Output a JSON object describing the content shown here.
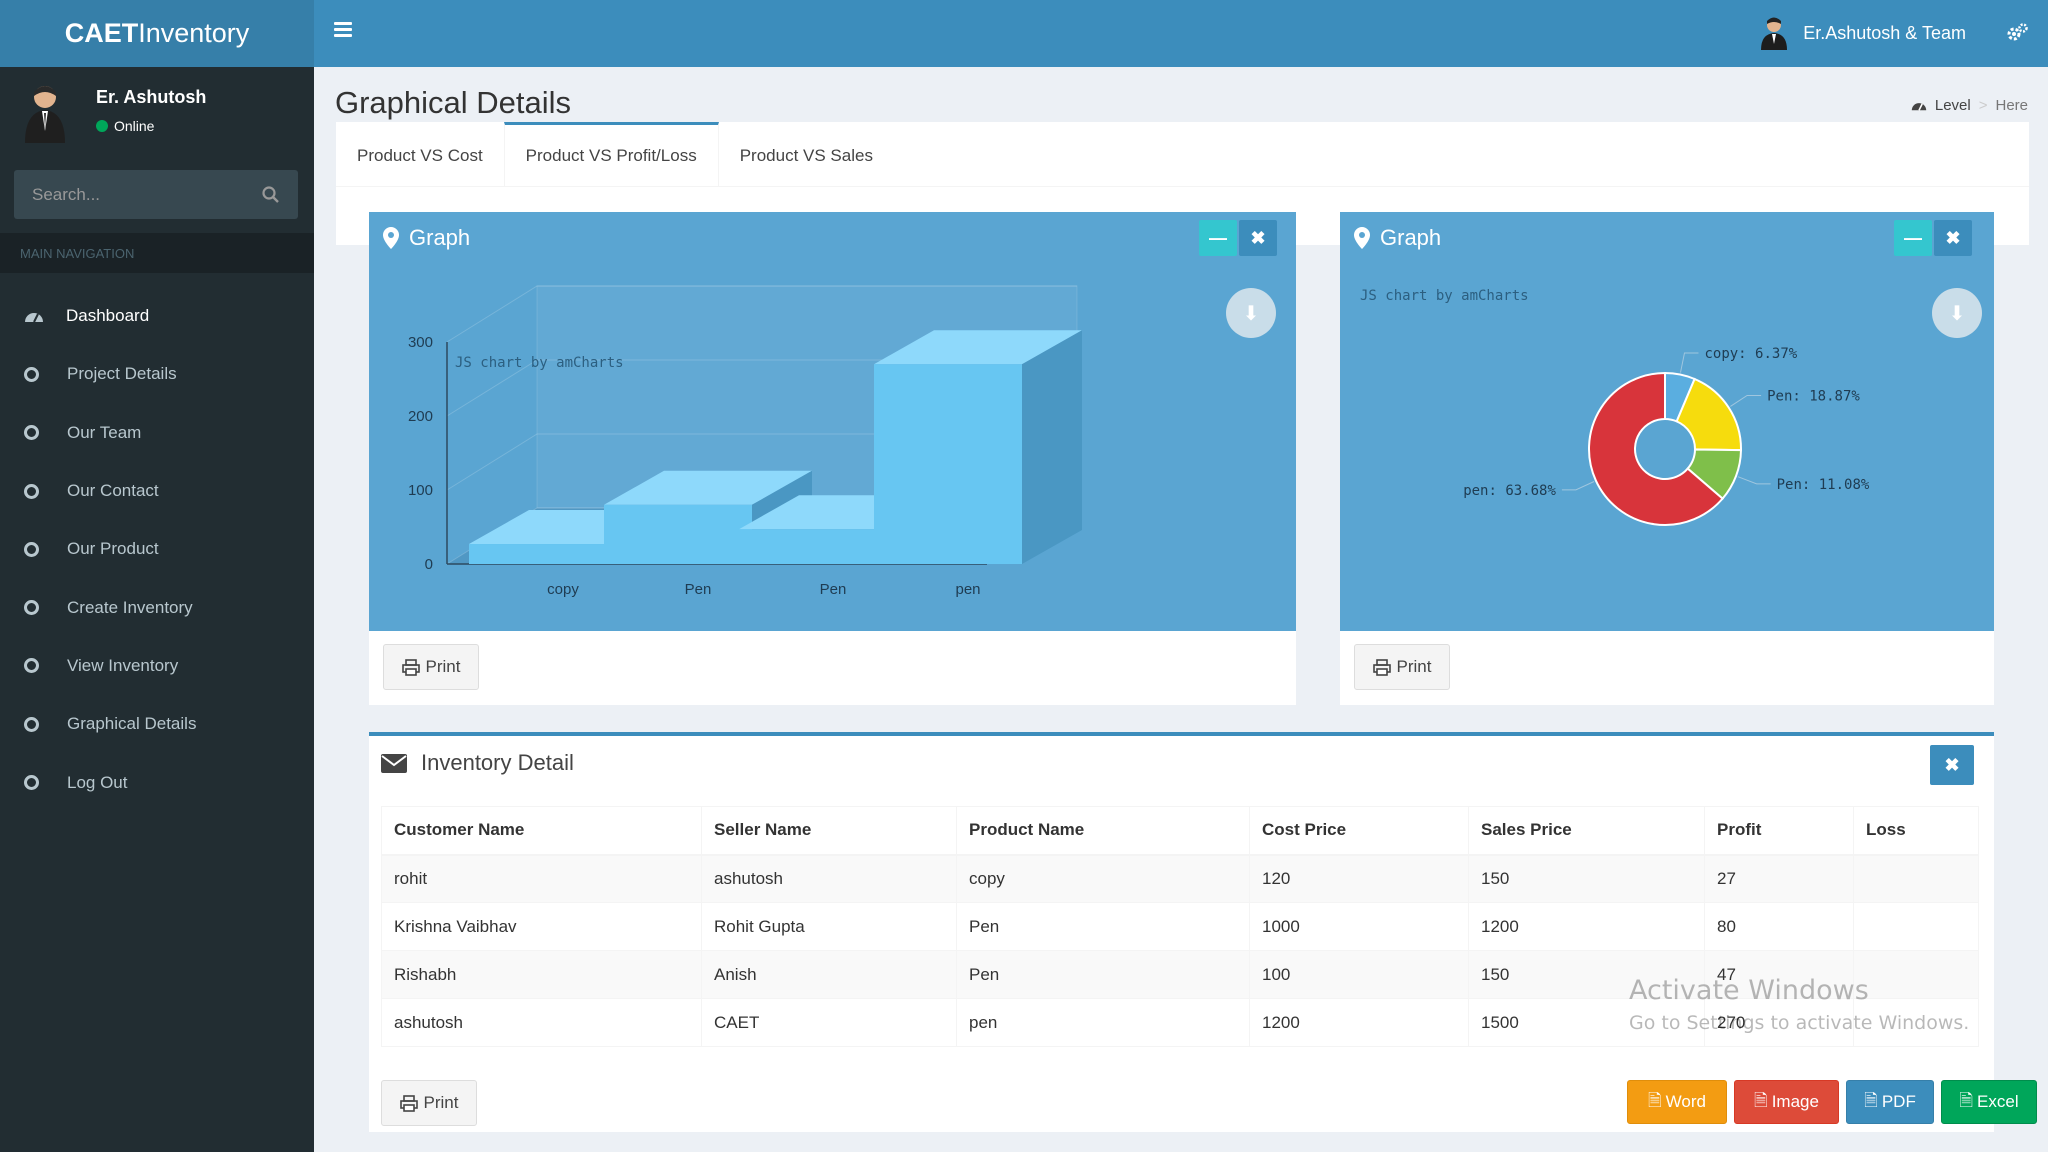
{
  "app": {
    "logo_bold": "CAET",
    "logo_rest": "Inventory"
  },
  "topbar": {
    "user_label": "Er.Ashutosh & Team"
  },
  "sidebar": {
    "user_name": "Er. Ashutosh",
    "user_status": "Online",
    "search_placeholder": "Search...",
    "section_header": "MAIN NAVIGATION",
    "items": [
      {
        "label": "Dashboard"
      },
      {
        "label": "Project Details"
      },
      {
        "label": "Our Team"
      },
      {
        "label": "Our Contact"
      },
      {
        "label": "Our Product"
      },
      {
        "label": "Create Inventory"
      },
      {
        "label": "View Inventory"
      },
      {
        "label": "Graphical Details"
      },
      {
        "label": "Log Out"
      }
    ]
  },
  "page": {
    "title": "Graphical Details",
    "breadcrumb": {
      "level": "Level",
      "here": "Here"
    },
    "tabs": [
      "Product VS Cost",
      "Product VS Profit/Loss",
      "Product VS Sales"
    ],
    "active_tab": "Product VS Profit/Loss"
  },
  "graphs": {
    "left_title": "Graph",
    "right_title": "Graph",
    "credit": "JS chart by amCharts",
    "print_label": "Print"
  },
  "chart_data": [
    {
      "type": "bar",
      "categories": [
        "copy",
        "Pen",
        "Pen",
        "pen"
      ],
      "values": [
        27,
        80,
        47,
        270
      ],
      "ylim": [
        0,
        300
      ],
      "yticks": [
        0,
        100,
        200,
        300
      ],
      "credit": "JS chart by amCharts",
      "color": "#67c6f2"
    },
    {
      "type": "pie",
      "donut": true,
      "slices": [
        {
          "label": "copy",
          "percent": 6.37,
          "color": "#5aaee0"
        },
        {
          "label": "Pen",
          "percent": 18.87,
          "color": "#f6dc0d"
        },
        {
          "label": "Pen",
          "percent": 11.08,
          "color": "#7fbf4a"
        },
        {
          "label": "pen",
          "percent": 63.68,
          "color": "#d8343b"
        }
      ],
      "labels_text": [
        "copy: 6.37%",
        "Pen: 18.87%",
        "Pen: 11.08%",
        "pen: 63.68%"
      ],
      "credit": "JS chart by amCharts"
    }
  ],
  "inventory": {
    "title": "Inventory Detail",
    "columns": [
      "Customer Name",
      "Seller Name",
      "Product Name",
      "Cost Price",
      "Sales Price",
      "Profit",
      "Loss"
    ],
    "rows": [
      [
        "rohit",
        "ashutosh",
        "copy",
        "120",
        "150",
        "27",
        ""
      ],
      [
        "Krishna Vaibhav",
        "Rohit Gupta",
        "Pen",
        "1000",
        "1200",
        "80",
        ""
      ],
      [
        "Rishabh",
        "Anish",
        "Pen",
        "100",
        "150",
        "47",
        ""
      ],
      [
        "ashutosh",
        "CAET",
        "pen",
        "1200",
        "1500",
        "270",
        ""
      ]
    ],
    "print_label": "Print",
    "export": {
      "word": "Word",
      "image": "Image",
      "pdf": "PDF",
      "excel": "Excel"
    }
  },
  "watermark": {
    "line1": "Activate Windows",
    "line2": "Go to Settings to activate Windows."
  },
  "colors": {
    "header": "#3c8dbc",
    "sidebar": "#222d32",
    "graph_bg": "#5aa5d2"
  }
}
